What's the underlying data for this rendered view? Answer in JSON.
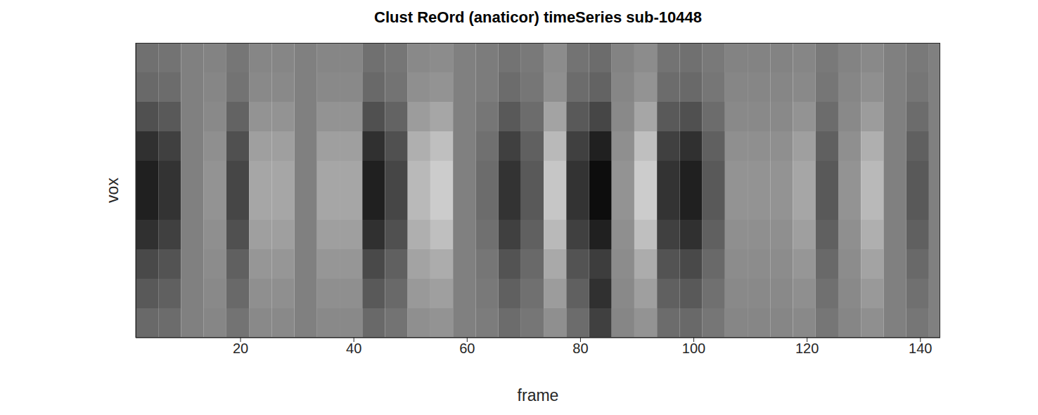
{
  "chart_data": {
    "type": "heatmap",
    "title": "Clust ReOrd (anaticor) timeSeries sub-10448",
    "xlabel": "frame",
    "ylabel": "vox",
    "xlim": [
      1.5,
      143.5
    ],
    "xticks": [
      20,
      40,
      60,
      80,
      100,
      120,
      140
    ],
    "ylim": [
      0,
      10
    ],
    "tick_labels": "x",
    "color": "gray",
    "zlim": [
      0.1,
      0.9
    ],
    "x_edges": [
      1.5,
      5.5,
      9.5,
      13.5,
      17.5,
      21.5,
      25.5,
      29.5,
      33.5,
      37.5,
      41.5,
      45.5,
      49.5,
      53.5,
      57.5,
      61.5,
      65.5,
      69.5,
      73.5,
      77.5,
      81.5,
      85.5,
      89.5,
      93.5,
      97.5,
      101.5,
      105.5,
      109.5,
      113.5,
      117.5,
      121.5,
      125.5,
      129.5,
      133.5,
      137.5,
      141.5,
      143.5
    ],
    "z": [
      [
        0.45,
        0.46,
        0.5,
        0.51,
        0.47,
        0.52,
        0.52,
        0.5,
        0.52,
        0.52,
        0.45,
        0.47,
        0.53,
        0.54,
        0.5,
        0.49,
        0.46,
        0.48,
        0.54,
        0.46,
        0.44,
        0.51,
        0.54,
        0.46,
        0.45,
        0.48,
        0.51,
        0.51,
        0.51,
        0.52,
        0.48,
        0.51,
        0.53,
        0.5,
        0.48,
        0.5
      ],
      [
        0.43,
        0.44,
        0.5,
        0.52,
        0.46,
        0.53,
        0.53,
        0.5,
        0.53,
        0.53,
        0.43,
        0.46,
        0.55,
        0.56,
        0.5,
        0.49,
        0.44,
        0.47,
        0.55,
        0.44,
        0.41,
        0.52,
        0.56,
        0.44,
        0.43,
        0.47,
        0.52,
        0.52,
        0.52,
        0.53,
        0.47,
        0.52,
        0.55,
        0.5,
        0.47,
        0.5
      ],
      [
        0.35,
        0.38,
        0.5,
        0.53,
        0.41,
        0.56,
        0.56,
        0.5,
        0.56,
        0.56,
        0.35,
        0.41,
        0.59,
        0.62,
        0.5,
        0.47,
        0.38,
        0.44,
        0.61,
        0.38,
        0.32,
        0.53,
        0.62,
        0.38,
        0.35,
        0.44,
        0.53,
        0.53,
        0.53,
        0.56,
        0.44,
        0.53,
        0.59,
        0.5,
        0.44,
        0.5
      ],
      [
        0.25,
        0.3,
        0.5,
        0.55,
        0.35,
        0.6,
        0.6,
        0.5,
        0.6,
        0.6,
        0.25,
        0.35,
        0.65,
        0.7,
        0.5,
        0.45,
        0.3,
        0.4,
        0.68,
        0.3,
        0.2,
        0.55,
        0.7,
        0.3,
        0.25,
        0.4,
        0.55,
        0.55,
        0.55,
        0.6,
        0.4,
        0.55,
        0.65,
        0.5,
        0.4,
        0.5
      ],
      [
        0.2,
        0.26,
        0.5,
        0.56,
        0.32,
        0.62,
        0.62,
        0.5,
        0.62,
        0.62,
        0.2,
        0.32,
        0.68,
        0.74,
        0.5,
        0.44,
        0.26,
        0.38,
        0.72,
        0.26,
        0.14,
        0.56,
        0.74,
        0.26,
        0.2,
        0.38,
        0.56,
        0.56,
        0.56,
        0.62,
        0.38,
        0.56,
        0.68,
        0.5,
        0.38,
        0.5
      ],
      [
        0.2,
        0.26,
        0.5,
        0.56,
        0.32,
        0.62,
        0.62,
        0.5,
        0.62,
        0.62,
        0.2,
        0.32,
        0.68,
        0.74,
        0.5,
        0.44,
        0.26,
        0.38,
        0.72,
        0.26,
        0.14,
        0.56,
        0.74,
        0.26,
        0.2,
        0.38,
        0.56,
        0.56,
        0.56,
        0.62,
        0.38,
        0.56,
        0.68,
        0.5,
        0.38,
        0.5
      ],
      [
        0.25,
        0.3,
        0.5,
        0.55,
        0.35,
        0.6,
        0.6,
        0.5,
        0.6,
        0.6,
        0.25,
        0.35,
        0.65,
        0.7,
        0.5,
        0.45,
        0.3,
        0.4,
        0.68,
        0.3,
        0.2,
        0.55,
        0.7,
        0.3,
        0.25,
        0.4,
        0.55,
        0.55,
        0.55,
        0.6,
        0.4,
        0.55,
        0.65,
        0.5,
        0.4,
        0.5
      ],
      [
        0.33,
        0.36,
        0.5,
        0.54,
        0.4,
        0.57,
        0.57,
        0.5,
        0.57,
        0.57,
        0.33,
        0.4,
        0.61,
        0.64,
        0.5,
        0.47,
        0.36,
        0.43,
        0.63,
        0.36,
        0.29,
        0.54,
        0.64,
        0.36,
        0.33,
        0.43,
        0.54,
        0.54,
        0.54,
        0.57,
        0.43,
        0.54,
        0.61,
        0.5,
        0.43,
        0.5
      ],
      [
        0.38,
        0.4,
        0.5,
        0.53,
        0.43,
        0.55,
        0.55,
        0.5,
        0.55,
        0.55,
        0.38,
        0.43,
        0.58,
        0.6,
        0.5,
        0.48,
        0.4,
        0.45,
        0.59,
        0.4,
        0.25,
        0.53,
        0.6,
        0.4,
        0.38,
        0.45,
        0.53,
        0.53,
        0.53,
        0.55,
        0.45,
        0.53,
        0.58,
        0.5,
        0.45,
        0.5
      ],
      [
        0.43,
        0.44,
        0.5,
        0.52,
        0.46,
        0.53,
        0.53,
        0.5,
        0.53,
        0.53,
        0.43,
        0.46,
        0.55,
        0.56,
        0.5,
        0.49,
        0.44,
        0.47,
        0.55,
        0.44,
        0.3,
        0.52,
        0.56,
        0.44,
        0.43,
        0.47,
        0.52,
        0.52,
        0.52,
        0.53,
        0.47,
        0.52,
        0.55,
        0.5,
        0.47,
        0.5
      ]
    ]
  }
}
